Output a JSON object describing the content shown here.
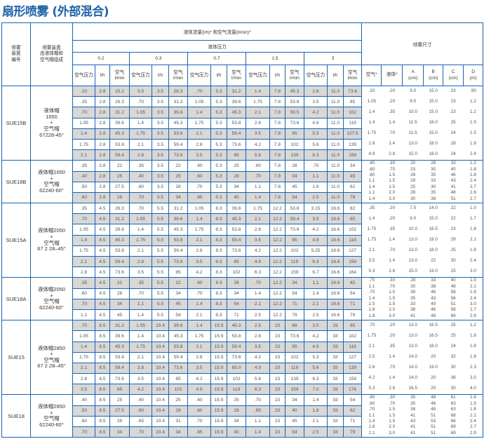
{
  "title": "扇形喷雾 (外部混合)",
  "header": {
    "col_id": "喷雾\n装置\n编号",
    "col_comp": "喷雾装置\n由液体帽和\n空气帽组成",
    "flow": "液体流量(l/h)* 和空气流量(l/min)*",
    "pressure": "液体压力",
    "pressures": [
      "0.2",
      "0.3",
      "0.7",
      "1.5",
      "3"
    ],
    "sub": [
      "空气压力",
      "l/h",
      "空气\nl/min"
    ],
    "spray": "喷雾尺寸",
    "spray_cols": [
      "空气*",
      "液体*",
      "A\n(cm)",
      "B\n(cm)",
      "C\n(cm)",
      "D\n(m)"
    ]
  },
  "colors": {
    "border": "#1a64ad",
    "title": "#1f63a8",
    "shade": "#d8d8d8"
  },
  "groups": [
    {
      "id": "SUE15B",
      "comp": [
        "液体帽",
        "1650",
        "+",
        "空气帽",
        "67228-45°"
      ],
      "shadeFirst": true,
      "rows": [
        [
          ".20",
          "2.8",
          "25.2",
          "3.5",
          "3.5",
          "26.3",
          ".70",
          "5.3",
          "31.2",
          "1.4",
          "7.8",
          "45.3",
          "2.8",
          "11.0",
          "73.6"
        ],
        [
          ".35",
          "2.8",
          "26.3",
          ".70",
          "3.5",
          "31.2",
          "1.05",
          "5.3",
          "39.6",
          "1.75",
          "7.8",
          "53.8",
          "3.5",
          "11.0",
          "85"
        ],
        [
          ".70",
          "2.8",
          "31.2",
          "1.05",
          "3.5",
          "39.6",
          "1.4",
          "5.3",
          "45.3",
          "2.1",
          "7.8",
          "59.5",
          "4.2",
          "11.0",
          "102"
        ],
        [
          "1.05",
          "2.8",
          "39.6",
          "1.4",
          "3.5",
          "45.3",
          "1.75",
          "5.3",
          "53.8",
          "2.8",
          "7.8",
          "73.6",
          "4.9",
          "11.0",
          "119"
        ],
        [
          "1.4",
          "2.8",
          "45.3",
          "1.75",
          "3.5",
          "53.8",
          "2.1",
          "5.3",
          "59.4",
          "3.5",
          "7.8",
          "85",
          "5.3",
          "11.0",
          "127.5"
        ],
        [
          "1.75",
          "2.8",
          "53.8",
          "2.1",
          "3.5",
          "59.4",
          "2.8",
          "5.3",
          "73.6",
          "4.2",
          "7.8",
          "102",
          "5.6",
          "11.0",
          "139"
        ],
        [
          "2.1",
          "2.8",
          "59.4",
          "2.8",
          "3.5",
          "73.6",
          "3.5",
          "5.3",
          "85",
          "5.6",
          "7.8",
          "139",
          "6.3",
          "11.0",
          "159"
        ]
      ],
      "spray": [
        [
          ".20",
          ".20",
          "9.0",
          "15.0",
          "23",
          ".90"
        ],
        [
          "1.05",
          ".20",
          "9.0",
          "15.0",
          "23",
          "1.2"
        ],
        [
          "1.4",
          ".35",
          "10.0",
          "15.0",
          "23",
          "1.2"
        ],
        [
          "1.4",
          "1.4",
          "11.5",
          "18.0",
          "25",
          "1.5"
        ],
        [
          "1.75",
          ".70",
          "11.5",
          "15.0",
          "24",
          "1.5"
        ],
        [
          "2.8",
          "1.4",
          "13.0",
          "18.0",
          "28",
          "1.8"
        ],
        [
          "4.9",
          "2.8",
          "15.0",
          "18.0",
          "24",
          "2.4"
        ]
      ]
    },
    {
      "id": "SUE18B",
      "comp": [
        "液体帽1650",
        "+",
        "空气帽",
        "62240-60°"
      ],
      "shadeFirst": false,
      "rows": [
        [
          ".35",
          "2.8",
          "22",
          ".35",
          "3.5",
          "22",
          ".40",
          "5.3",
          "25",
          ".60",
          "7.8",
          "28",
          ".70",
          "11.0",
          "34"
        ],
        [
          ".40",
          "2.8",
          "25",
          ".40",
          "3.5",
          "25",
          ".60",
          "5.3",
          "28",
          ".70",
          "7.8",
          "34",
          "1.1",
          "11.0",
          "45"
        ],
        [
          ".50",
          "2.8",
          "27.5",
          ".60",
          "3.5",
          "28",
          ".70",
          "5.3",
          "34",
          "1.1",
          "7.8",
          "45",
          "1.8",
          "11.0",
          "62"
        ],
        [
          ".60",
          "2.8",
          "28",
          ".70",
          "3.5",
          "34",
          ".85",
          "5.3",
          "40",
          "1.4",
          "7.8",
          "54",
          "2.5",
          "11.0",
          "79"
        ]
      ],
      "spray": [
        [
          ".40",
          ".30",
          "20",
          "28",
          "33",
          "1.2"
        ],
        [
          ".60",
          ".70",
          "23",
          "30",
          "40",
          "1.8"
        ],
        [
          ".60",
          "1.5",
          "28",
          "35",
          "46",
          "1.8"
        ],
        [
          "1.1",
          "1.5",
          "28",
          "33",
          "43",
          "2.4"
        ],
        [
          "1.4",
          "1.5",
          "25",
          "30",
          "41",
          "2.7"
        ],
        [
          "1.1",
          "2.0",
          "28",
          "35",
          "48",
          "2.6"
        ],
        [
          "1.4",
          "3.0",
          "30",
          "38",
          "51",
          "2.7"
        ]
      ]
    },
    {
      "id": "SUE15A",
      "comp": [
        "液体帽2050",
        "+",
        "空气帽",
        "67 2 28–45°"
      ],
      "shadeFirst": false,
      "rows": [
        [
          ".35",
          "4.5",
          "26.3",
          ".70",
          "5.5",
          "31.2",
          "1.05",
          "8.3",
          "39.6",
          "1.75",
          "12.2",
          "53.8",
          "3.15",
          "16.6",
          "82"
        ],
        [
          ".70",
          "4.5",
          "31.2",
          "1.05",
          "5.5",
          "39.6",
          "1.4",
          "8.3",
          "45.3",
          "2.1",
          "12.2",
          "59.4",
          "3.5",
          "16.6",
          "85"
        ],
        [
          "1.05",
          "4.5",
          "39.6",
          "1.4",
          "5.5",
          "45.3",
          "1.75",
          "8.3",
          "53.8",
          "2.8",
          "12.2",
          "73.6",
          "4.2",
          "16.6",
          "102"
        ],
        [
          "1.4",
          "4.5",
          "45.3",
          "1.75",
          "5.5",
          "53.8",
          "2.1",
          "8.3",
          "59.4",
          "3.5",
          "12.2",
          "85",
          "4.9",
          "16.6",
          "119"
        ],
        [
          "1.75",
          "4.5",
          "53.8",
          "2.1",
          "5.5",
          "59.4",
          "2.8",
          "8.3",
          "73.6",
          "4.2",
          "12.2",
          "102",
          "5.25",
          "16.6",
          "127"
        ],
        [
          "2.1",
          "4.5",
          "59.4",
          "2.8",
          "5.5",
          "73.6",
          "3.5",
          "8.3",
          "85",
          "4.9",
          "12.2",
          "119",
          "6.3",
          "16.6",
          "159"
        ],
        [
          "2.8",
          "4.5",
          "73.6",
          "3.5",
          "5.5",
          "85",
          "4.2",
          "8.3",
          "102",
          "6.3",
          "12.2",
          "159",
          "6.7",
          "16.6",
          "164"
        ]
      ],
      "spray": [
        [
          ".35",
          ".20",
          "7.5",
          "14.0",
          "22",
          "1.0"
        ],
        [
          "1.4",
          ".20",
          "9.0",
          "15.0",
          "22",
          "1.7"
        ],
        [
          "1.75",
          ".35",
          "10.0",
          "16.5",
          "23",
          "1.8"
        ],
        [
          "1.75",
          "1.4",
          "13.0",
          "19.0",
          "29",
          "2.1"
        ],
        [
          "2.1",
          ".70",
          "13.0",
          "18.0",
          "25",
          "1.8"
        ],
        [
          "3.5",
          "1.4",
          "13.0",
          "22",
          "30",
          "2.4"
        ],
        [
          "5.3",
          "2.8",
          "15.0",
          "19.0",
          "25",
          "3.0"
        ]
      ]
    },
    {
      "id": "SUE18A",
      "comp": [
        "液体帽2050",
        "+",
        "空气帽",
        "62240-60°"
      ],
      "shadeFirst": true,
      "rows": [
        [
          ".35",
          "4.5",
          "22",
          ".35",
          "5.5",
          "22",
          ".60",
          "8.3",
          "28",
          ".70",
          "12.2",
          "34",
          "1.1",
          "16.6",
          "45"
        ],
        [
          ".60",
          "4.5",
          "28",
          ".70",
          "5.5",
          "34",
          ".70",
          "8.3",
          "34",
          "1.4",
          "12.2",
          "54",
          "1.4",
          "16.6",
          "54"
        ],
        [
          ".70",
          "4.5",
          "34",
          "1.1",
          "5.5",
          "45",
          "1.4",
          "8.3",
          "54",
          "2.1",
          "12.2",
          "71",
          "2.1",
          "16.6",
          "71"
        ],
        [
          "1.1",
          "4.5",
          "45",
          "1.4",
          "5.5",
          "54",
          "2.1",
          "8.3",
          "71",
          "2.5",
          "12.2",
          "79",
          "2.5",
          "16.6",
          "79"
        ]
      ],
      "spray": [
        [
          ".70",
          ".30",
          "28",
          "33",
          "40",
          "1.5"
        ],
        [
          "1.1",
          ".70",
          "30",
          "38",
          "48",
          "2.1"
        ],
        [
          ".70",
          "1.5",
          "38",
          "46",
          "58",
          "1.8"
        ],
        [
          "1.4",
          "1.5",
          "35",
          "43",
          "56",
          "2.4"
        ],
        [
          "2.5",
          "1.5",
          "33",
          "40",
          "51",
          "3.0"
        ],
        [
          "1.8",
          "2.0",
          "38",
          "46",
          "58",
          "2.7"
        ],
        [
          "1.8",
          "3.0",
          "41",
          "48",
          "66",
          "2.9"
        ]
      ]
    },
    {
      "id": "SUE15",
      "comp": [
        "液体帽2850",
        "+",
        "空气帽",
        "67 2 28–45°"
      ],
      "shadeFirst": true,
      "rows": [
        [
          ".70",
          "8.5",
          "31.2",
          "1.05",
          "10.4",
          "39.6",
          "1.4",
          "15.9",
          "45.3",
          "2.5",
          "23",
          "68",
          "3.5",
          "33",
          "85"
        ],
        [
          "1.05",
          "8.5",
          "39.6",
          "1.4",
          "10.4",
          "45.3",
          "1.75",
          "15.9",
          "53.8",
          "2.8",
          "23",
          "73.6",
          "4.2",
          "33",
          "102"
        ],
        [
          "1.4",
          "8.5",
          "45.3",
          "1.75",
          "10.4",
          "53.8",
          "2.1",
          "15.9",
          "59.4",
          "3.5",
          "23",
          "85",
          "4.9",
          "33",
          "119"
        ],
        [
          "1.75",
          "8.5",
          "53.8",
          "2.1",
          "10.4",
          "59.4",
          "2.8",
          "15.9",
          "73.6",
          "4.2",
          "23",
          "102",
          "5.3",
          "33",
          "127"
        ],
        [
          "2.1",
          "8.5",
          "59.4",
          "2.8",
          "10.4",
          "73.6",
          "3.5",
          "15.9",
          "85.0",
          "4.9",
          "23",
          "119",
          "5.6",
          "33",
          "139"
        ],
        [
          "2.8",
          "8.5",
          "73.6",
          "3.5",
          "10.4",
          "85",
          "4.2",
          "15.9",
          "102",
          "5.6",
          "23",
          "139",
          "6.3",
          "33",
          "159"
        ],
        [
          "3.5",
          "8.5",
          "85",
          "4.2",
          "10.4",
          "102",
          "4.9",
          "15.9",
          "119",
          "6.3",
          "23",
          "159",
          "7.0",
          "33",
          "176"
        ]
      ],
      "spray": [
        [
          ".70",
          ".20",
          "13.0",
          "16.5",
          "25",
          "1.2"
        ],
        [
          "1.75",
          ".20",
          "13.0",
          "16.5",
          "25",
          "1.8"
        ],
        [
          "2.1",
          ".35",
          "13.0",
          "18.0",
          "24",
          "1.8"
        ],
        [
          "2.5",
          "1.4",
          "14.0",
          "20",
          "32",
          "1.8"
        ],
        [
          "2.8",
          ".70",
          "14.0",
          "19.0",
          "30",
          "2.3"
        ],
        [
          "4.2",
          "1.4",
          "14.0",
          "20",
          "36",
          "3.0"
        ],
        [
          "5.3",
          "2.8",
          "16.5",
          "20",
          "30",
          "4.0"
        ]
      ]
    },
    {
      "id": "SUE18",
      "comp": [
        "液体帽2850",
        "+",
        "空气帽",
        "62240-60°"
      ],
      "shadeFirst": false,
      "rows": [
        [
          ".40",
          "8.5",
          "25",
          ".40",
          "10.4",
          "25",
          ".40",
          "15.9",
          "25",
          ".70",
          "23",
          "34",
          "1.4",
          "33",
          "54"
        ],
        [
          ".50",
          "8.5",
          "27.5",
          ".60",
          "10.4",
          "28",
          ".60",
          "15.9",
          "28",
          ".85",
          "23",
          "40",
          "1.8",
          "33",
          "62"
        ],
        [
          ".60",
          "8.5",
          "28",
          ".65",
          "10.4",
          "31",
          ".70",
          "15.9",
          "34",
          "1.1",
          "23",
          "45",
          "2.1",
          "33",
          "71"
        ],
        [
          ".70",
          "8.5",
          "34",
          ".70",
          "10.4",
          "34",
          ".85",
          "15.9",
          "40",
          "1.4",
          "23",
          "54",
          "2.5",
          "33",
          "79"
        ]
      ],
      "spray": [
        [
          ".80",
          ".30",
          "35",
          "48",
          "61",
          "1.8"
        ],
        [
          ".60",
          ".70",
          "35",
          "48",
          "63",
          "1.5"
        ],
        [
          ".70",
          "1.5",
          "38",
          "48",
          "63",
          "1.8"
        ],
        [
          "1.1",
          "1.5",
          "41",
          "51",
          "68",
          "2.1"
        ],
        [
          "1.4",
          "1.5",
          "43",
          "53",
          "66",
          "2.4"
        ],
        [
          "1.8",
          "2.0",
          "41",
          "51",
          "69",
          "2.7"
        ],
        [
          "2.1",
          "3.0",
          "41",
          "51",
          "69",
          "2.9"
        ]
      ]
    }
  ]
}
